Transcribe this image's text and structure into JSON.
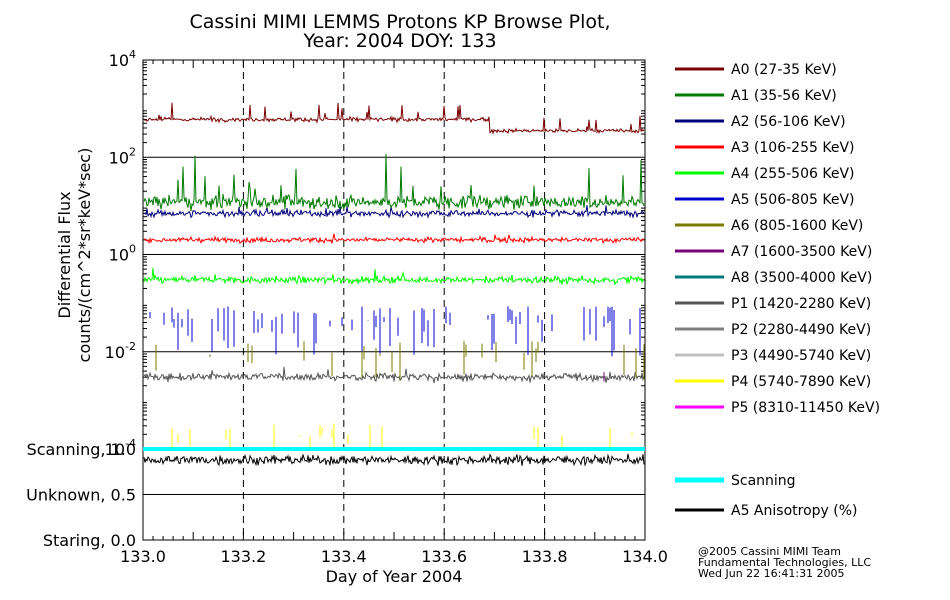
{
  "chart_data": {
    "type": "line",
    "title_line1": "Cassini MIMI LEMMS Protons KP Browse Plot,",
    "title_line2": "Year: 2004 DOY: 133",
    "xlabel": "Day of Year 2004",
    "ylabel_line1": "Differential Flux",
    "ylabel_line2": "counts/(cm^2*sr*keV*sec)",
    "xlim": [
      133.0,
      134.0
    ],
    "x_ticks": [
      "133.0",
      "133.2",
      "133.4",
      "133.6",
      "133.8",
      "134.0"
    ],
    "x_tick_values": [
      133.0,
      133.2,
      133.4,
      133.6,
      133.8,
      134.0
    ],
    "y_scale": "log",
    "ylim": [
      0.0001,
      10000
    ],
    "y_ticks": [
      {
        "value": 10000,
        "base": "10",
        "exp": "4"
      },
      {
        "value": 100,
        "base": "10",
        "exp": "2"
      },
      {
        "value": 1,
        "base": "10",
        "exp": "0"
      },
      {
        "value": 0.01,
        "base": "10",
        "exp": "-2"
      },
      {
        "value": 0.0001,
        "base": "10",
        "exp": "-4"
      }
    ],
    "series": [
      {
        "name": "A0 (27-35 KeV)",
        "color": "#7a0000",
        "typical": 600,
        "after_173": 350
      },
      {
        "name": "A1 (35-56 KeV)",
        "color": "#007a00",
        "typical": 12
      },
      {
        "name": "A2 (56-106 KeV)",
        "color": "#00007a",
        "typical": 7
      },
      {
        "name": "A3 (106-255 KeV)",
        "color": "#ff0000",
        "typical": 2
      },
      {
        "name": "A4 (255-506 KeV)",
        "color": "#00ff00",
        "typical": 0.3
      },
      {
        "name": "A5 (506-805 KeV)",
        "color": "#0000cc",
        "typical": 0.05
      },
      {
        "name": "A6 (805-1600 KeV)",
        "color": "#7a7a00",
        "typical": 0.01
      },
      {
        "name": "A7 (1600-3500 KeV)",
        "color": "#7a007a",
        "typical": 0.004
      },
      {
        "name": "A8 (3500-4000 KeV)",
        "color": "#007a7a",
        "typical": null
      },
      {
        "name": "P1 (1420-2280 KeV)",
        "color": "#555555",
        "typical": 0.003
      },
      {
        "name": "P2 (2280-4490 KeV)",
        "color": "#7f7f7f",
        "typical": null
      },
      {
        "name": "P3 (4490-5740 KeV)",
        "color": "#c0c0c0",
        "typical": null
      },
      {
        "name": "P4 (5740-7890 KeV)",
        "color": "#ffff00",
        "typical": 0.0002
      },
      {
        "name": "P5 (8310-11450 KeV)",
        "color": "#ff00ff",
        "typical": null
      }
    ],
    "lower_panel": {
      "y_labels": [
        "Scanning, 1.0",
        "Unknown, 0.5",
        "Staring, 0.0"
      ],
      "y_values": [
        1.0,
        0.5,
        0.0
      ],
      "series": [
        {
          "name": "Scanning",
          "color": "#00ffff",
          "value": 1.0
        },
        {
          "name": "A5 Anisotropy (%)",
          "color": "#000000",
          "typical": 0.88
        }
      ]
    },
    "credits": [
      "@2005 Cassini MIMI Team",
      "Fundamental Technologies, LLC",
      "Wed Jun 22 16:41:31 2005"
    ]
  }
}
